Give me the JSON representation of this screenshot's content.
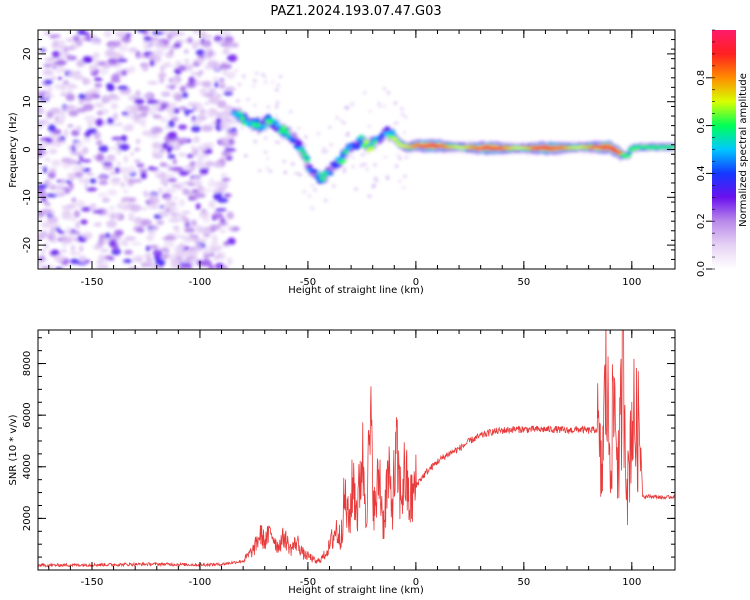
{
  "title": "PAZ1.2024.193.07.47.G03",
  "colors": {
    "snr_line": "#e83a3a",
    "colormap": [
      "#ffffff",
      "#e6d2f5",
      "#b98aea",
      "#6a10ee",
      "#1438ff",
      "#00c8ff",
      "#00ff58",
      "#d8ff00",
      "#ff8c00",
      "#ff2020",
      "#ff1a6a"
    ]
  },
  "chart_data": [
    {
      "type": "heatmap",
      "xlabel": "Height of straight line (km)",
      "ylabel": "Frequency (Hz)",
      "xlim": [
        -175,
        120
      ],
      "ylim": [
        -25,
        25
      ],
      "xticks": [
        -150,
        -100,
        -50,
        0,
        50,
        100
      ],
      "yticks": [
        -20,
        -10,
        0,
        10,
        20
      ],
      "colorbar": {
        "label": "Normalized spectral amplitude",
        "range": [
          0.0,
          1.0
        ],
        "ticks": [
          0.0,
          0.2,
          0.4,
          0.6,
          0.8
        ]
      },
      "ridge": {
        "x": [
          -82,
          -78,
          -72,
          -68,
          -64,
          -60,
          -56,
          -52,
          -49,
          -46,
          -43,
          -40,
          -37,
          -34,
          -31,
          -28,
          -25,
          -22,
          -19,
          -16,
          -13,
          -10,
          -7,
          -4,
          0,
          5,
          10,
          15,
          20,
          30,
          40,
          50,
          60,
          70,
          80,
          85,
          90,
          95,
          98,
          100,
          105,
          110,
          115,
          120
        ],
        "y": [
          7,
          6,
          5,
          6,
          5,
          3.5,
          2,
          -1,
          -4,
          -5.5,
          -6,
          -4.5,
          -3,
          -2,
          0,
          1,
          2,
          0.5,
          1.5,
          2,
          4,
          2.5,
          1,
          0.5,
          0.8,
          0.8,
          0.8,
          0.6,
          0.5,
          0.3,
          0.3,
          0.3,
          0.3,
          0.4,
          0.5,
          0.5,
          0.5,
          -1,
          -1.5,
          0.3,
          0.5,
          0.5,
          0.5,
          0.5
        ]
      },
      "noise_region": [
        -175,
        -84
      ]
    },
    {
      "type": "line",
      "xlabel": "Height of straight line (km)",
      "ylabel": "SNR (10 * v/v)",
      "xlim": [
        -175,
        120
      ],
      "ylim": [
        0,
        9300
      ],
      "xticks": [
        -150,
        -100,
        -50,
        0,
        50,
        100
      ],
      "yticks": [
        2000,
        4000,
        6000,
        8000
      ],
      "series": [
        {
          "x": [
            -175,
            -150,
            -120,
            -100,
            -90,
            -80,
            -75,
            -72,
            -70,
            -67,
            -64,
            -61,
            -58,
            -55,
            -52,
            -49,
            -46,
            -43,
            -40,
            -37,
            -35,
            -33,
            -31,
            -29,
            -27,
            -25,
            -23,
            -21,
            -19,
            -17,
            -15,
            -13,
            -11,
            -9,
            -7,
            -5,
            -3,
            -1,
            1,
            5,
            10,
            15,
            20,
            25,
            30,
            35,
            40,
            45,
            50,
            55,
            60,
            65,
            70,
            75,
            80,
            84,
            86,
            88,
            90,
            92,
            94,
            96,
            98,
            100,
            102,
            104,
            105,
            106,
            110,
            115,
            120
          ],
          "y": [
            180,
            200,
            230,
            200,
            220,
            350,
            800,
            1400,
            1100,
            1500,
            900,
            1300,
            800,
            1100,
            600,
            500,
            300,
            500,
            900,
            1600,
            1200,
            2800,
            1800,
            3500,
            2200,
            4600,
            2500,
            5400,
            2100,
            3800,
            1800,
            3600,
            2600,
            4400,
            2800,
            3800,
            2500,
            3000,
            3400,
            3800,
            4200,
            4500,
            4700,
            5000,
            5200,
            5350,
            5400,
            5450,
            5450,
            5450,
            5450,
            5450,
            5400,
            5450,
            5400,
            5450,
            3500,
            7500,
            4500,
            6500,
            3800,
            8200,
            3000,
            6000,
            5500,
            5200,
            2900,
            2850,
            2850,
            2800,
            2850
          ]
        }
      ]
    }
  ]
}
